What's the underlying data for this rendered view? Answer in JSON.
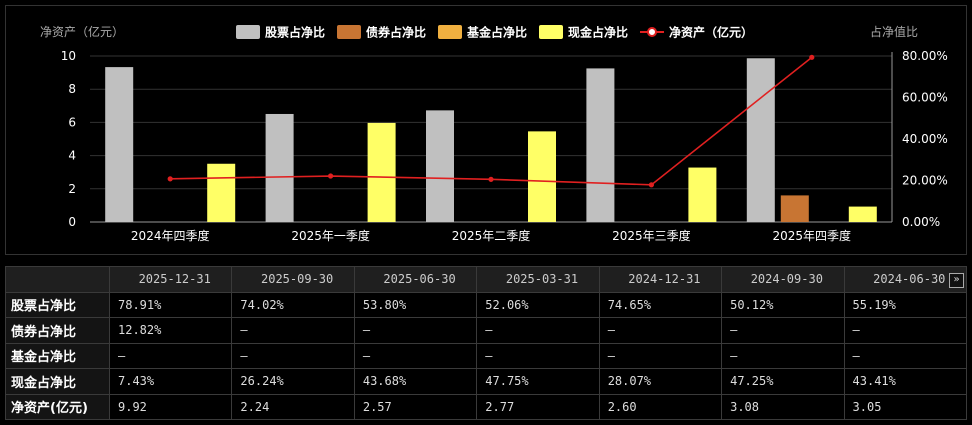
{
  "chart_data": {
    "type": "bar",
    "categories": [
      "2024年四季度",
      "2025年一季度",
      "2025年二季度",
      "2025年三季度",
      "2025年四季度"
    ],
    "series": [
      {
        "name": "股票占净比",
        "type": "bar",
        "axis": "right",
        "color": "#c0c0c0",
        "values": [
          74.65,
          52.06,
          53.8,
          74.02,
          78.91
        ]
      },
      {
        "name": "债券占净比",
        "type": "bar",
        "axis": "right",
        "color": "#c87533",
        "values": [
          0,
          0,
          0,
          0,
          12.82
        ]
      },
      {
        "name": "基金占净比",
        "type": "bar",
        "axis": "right",
        "color": "#f0b040",
        "values": [
          0,
          0,
          0,
          0,
          0
        ]
      },
      {
        "name": "现金占净比",
        "type": "bar",
        "axis": "right",
        "color": "#ffff66",
        "values": [
          28.07,
          47.75,
          43.68,
          26.24,
          7.43
        ]
      },
      {
        "name": "净资产（亿元）",
        "type": "line",
        "axis": "left",
        "color": "#e02020",
        "values": [
          2.6,
          2.77,
          2.57,
          2.24,
          9.92
        ]
      }
    ],
    "left_axis": {
      "title": "净资产（亿元）",
      "ticks": [
        "0",
        "2",
        "4",
        "6",
        "8",
        "10"
      ],
      "ylim": [
        0,
        10
      ]
    },
    "right_axis": {
      "title": "占净值比",
      "ticks": [
        "0.00%",
        "20.00%",
        "40.00%",
        "60.00%",
        "80.00%"
      ],
      "ylim": [
        0,
        80
      ]
    },
    "legend_position": "top-center",
    "grid": true
  },
  "table": {
    "headers": [
      "2025-12-31",
      "2025-09-30",
      "2025-06-30",
      "2025-03-31",
      "2024-12-31",
      "2024-09-30",
      "2024-06-30"
    ],
    "more_icon": "»",
    "rows": [
      {
        "label": "股票占净比",
        "values": [
          "78.91%",
          "74.02%",
          "53.80%",
          "52.06%",
          "74.65%",
          "50.12%",
          "55.19%"
        ]
      },
      {
        "label": "债券占净比",
        "values": [
          "12.82%",
          "—",
          "—",
          "—",
          "—",
          "—",
          "—"
        ]
      },
      {
        "label": "基金占净比",
        "values": [
          "—",
          "—",
          "—",
          "—",
          "—",
          "—",
          "—"
        ]
      },
      {
        "label": "现金占净比",
        "values": [
          "7.43%",
          "26.24%",
          "43.68%",
          "47.75%",
          "28.07%",
          "47.25%",
          "43.41%"
        ]
      },
      {
        "label": "净资产(亿元)",
        "values": [
          "9.92",
          "2.24",
          "2.57",
          "2.77",
          "2.60",
          "3.08",
          "3.05"
        ]
      }
    ]
  }
}
